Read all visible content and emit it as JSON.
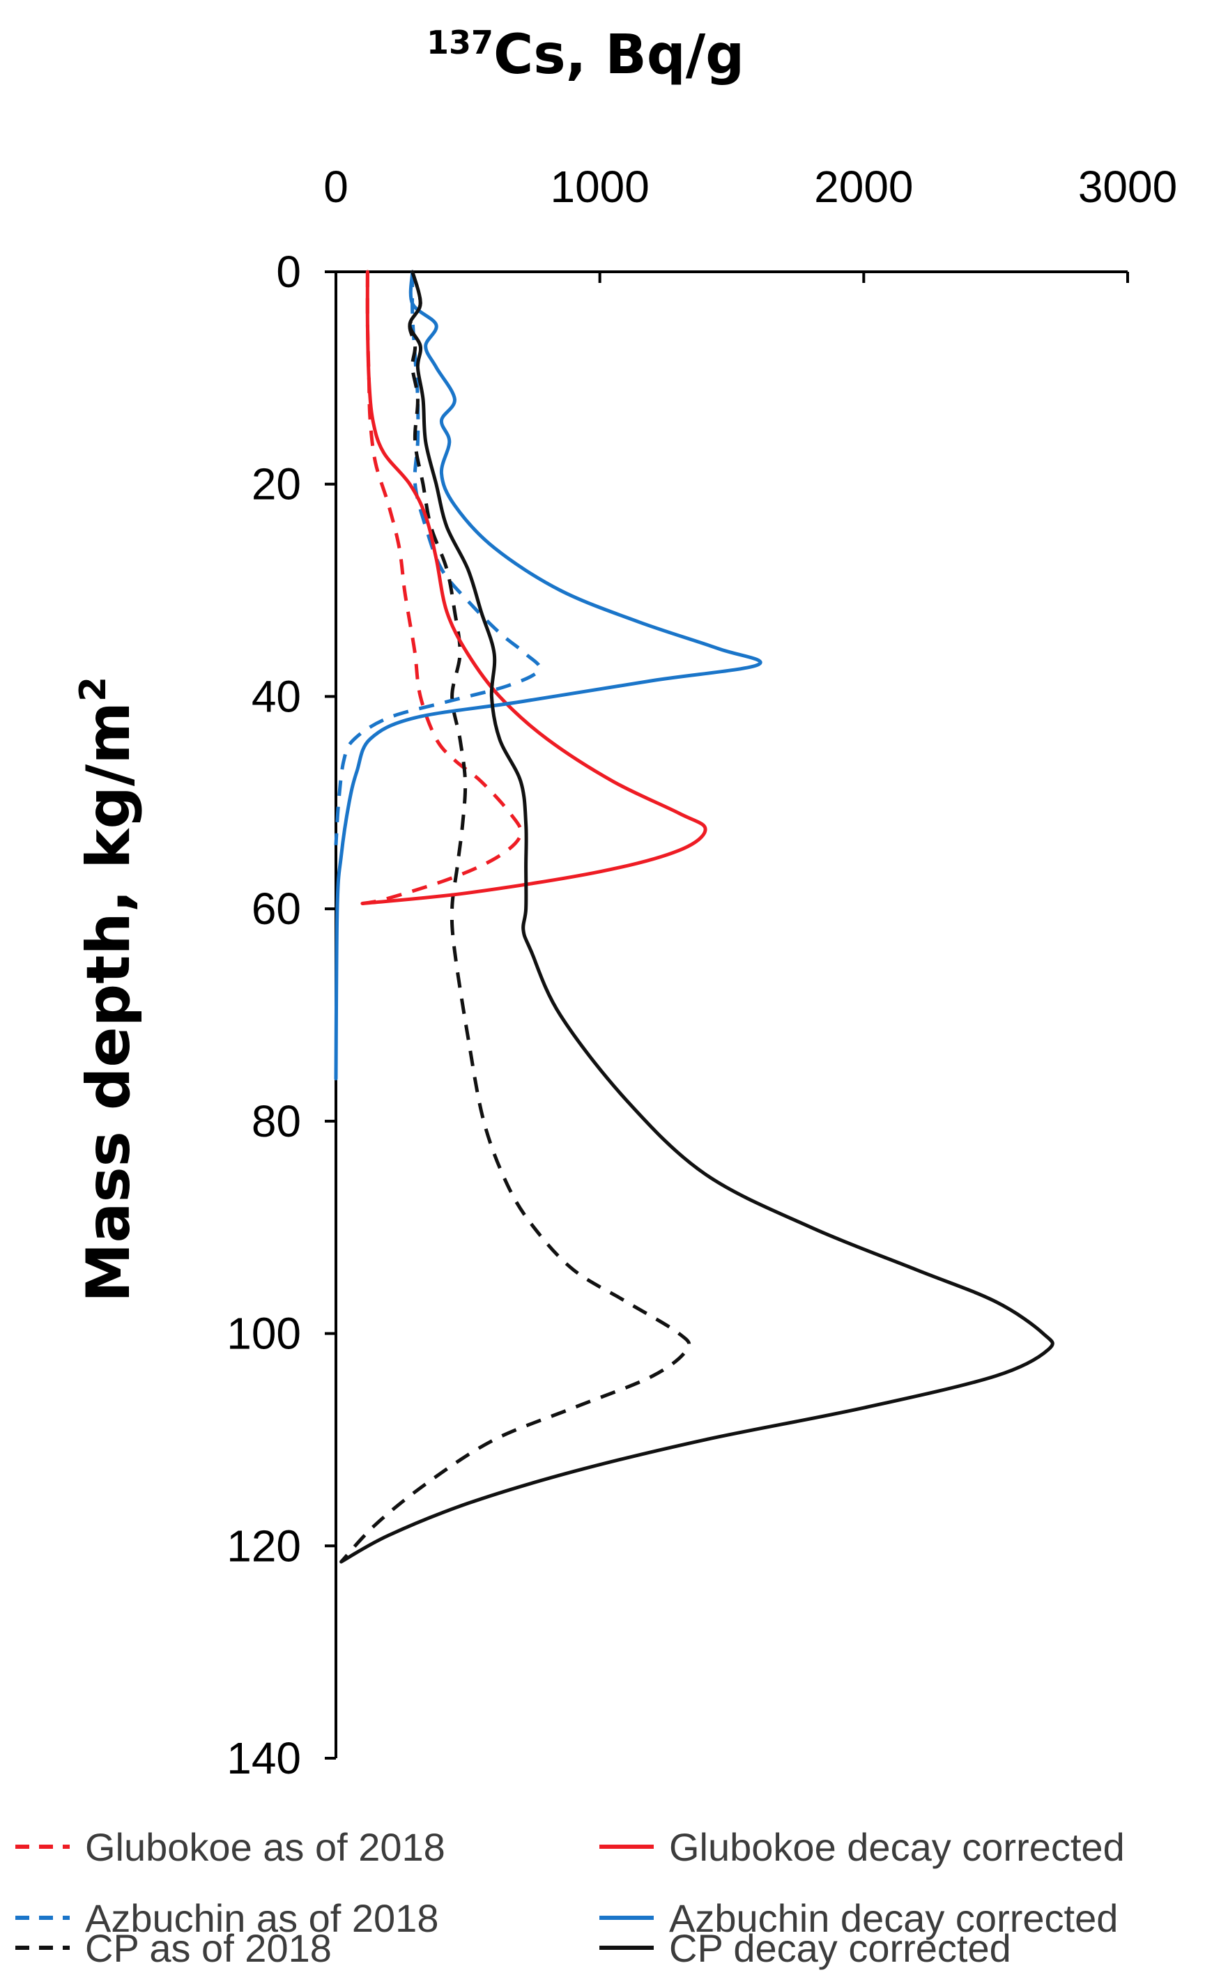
{
  "chart_data": {
    "type": "line",
    "title": "",
    "x_axis": {
      "label_main": "Cs, Bq/g",
      "label_superscript": "137",
      "ticks": [
        "0",
        "1000",
        "2000",
        "3000"
      ],
      "tick_values": [
        0,
        1000,
        2000,
        3000
      ],
      "range": [
        0,
        3000
      ],
      "position": "top"
    },
    "y_axis": {
      "label_main": "Mass depth, kg/m",
      "label_superscript": "2",
      "ticks": [
        "0",
        "20",
        "40",
        "60",
        "80",
        "100",
        "120",
        "140"
      ],
      "tick_values": [
        0,
        20,
        40,
        60,
        80,
        100,
        120,
        140
      ],
      "range": [
        0,
        140
      ],
      "inverted": true
    },
    "grid": false,
    "legend_position": "bottom",
    "series": [
      {
        "name": "Glubokoe as of 2018",
        "color": "#ee1c24",
        "style": "dashed",
        "points": [
          [
            120,
            0
          ],
          [
            120,
            5
          ],
          [
            125,
            10
          ],
          [
            130,
            14
          ],
          [
            150,
            18
          ],
          [
            200,
            22
          ],
          [
            240,
            26
          ],
          [
            260,
            30
          ],
          [
            280,
            33
          ],
          [
            300,
            36
          ],
          [
            320,
            40
          ],
          [
            380,
            44
          ],
          [
            450,
            46
          ],
          [
            550,
            48
          ],
          [
            660,
            51
          ],
          [
            700,
            53
          ],
          [
            620,
            55
          ],
          [
            450,
            57
          ],
          [
            200,
            59
          ],
          [
            100,
            59.5
          ]
        ]
      },
      {
        "name": "Glubokoe decay corrected",
        "color": "#ee1c24",
        "style": "solid",
        "points": [
          [
            120,
            0
          ],
          [
            120,
            5
          ],
          [
            125,
            10
          ],
          [
            140,
            14
          ],
          [
            180,
            17
          ],
          [
            280,
            20
          ],
          [
            340,
            23
          ],
          [
            380,
            27
          ],
          [
            420,
            32
          ],
          [
            500,
            36
          ],
          [
            620,
            40
          ],
          [
            800,
            44
          ],
          [
            1050,
            48
          ],
          [
            1300,
            51
          ],
          [
            1400,
            52.5
          ],
          [
            1300,
            54.5
          ],
          [
            1000,
            56.5
          ],
          [
            500,
            58.5
          ],
          [
            100,
            59.5
          ]
        ]
      },
      {
        "name": "Azbuchin as of 2018",
        "color": "#1a75c9",
        "style": "dashed",
        "points": [
          [
            290,
            0
          ],
          [
            290,
            4
          ],
          [
            300,
            8
          ],
          [
            310,
            12
          ],
          [
            310,
            16
          ],
          [
            300,
            20
          ],
          [
            340,
            24
          ],
          [
            400,
            28
          ],
          [
            500,
            31
          ],
          [
            620,
            34
          ],
          [
            720,
            36
          ],
          [
            770,
            37.5
          ],
          [
            650,
            39
          ],
          [
            420,
            40.5
          ],
          [
            200,
            42
          ],
          [
            70,
            44
          ],
          [
            30,
            46
          ],
          [
            10,
            50
          ],
          [
            0,
            54
          ]
        ]
      },
      {
        "name": "Azbuchin decay corrected",
        "color": "#1a75c9",
        "style": "solid",
        "points": [
          [
            290,
            0
          ],
          [
            290,
            3
          ],
          [
            380,
            5
          ],
          [
            340,
            7
          ],
          [
            380,
            9
          ],
          [
            450,
            12
          ],
          [
            400,
            14
          ],
          [
            430,
            16
          ],
          [
            400,
            19
          ],
          [
            450,
            22
          ],
          [
            600,
            26
          ],
          [
            850,
            30
          ],
          [
            1150,
            33
          ],
          [
            1450,
            35.5
          ],
          [
            1600,
            37
          ],
          [
            1200,
            38.5
          ],
          [
            700,
            40.5
          ],
          [
            300,
            42
          ],
          [
            130,
            44
          ],
          [
            80,
            47
          ],
          [
            50,
            50
          ],
          [
            20,
            55
          ],
          [
            5,
            60
          ],
          [
            0,
            76
          ]
        ]
      },
      {
        "name": "CP as of 2018",
        "color": "#111111",
        "style": "dashed",
        "points": [
          [
            290,
            0
          ],
          [
            320,
            3
          ],
          [
            280,
            5
          ],
          [
            300,
            7
          ],
          [
            290,
            9
          ],
          [
            310,
            12
          ],
          [
            300,
            16
          ],
          [
            330,
            20
          ],
          [
            360,
            24
          ],
          [
            420,
            28
          ],
          [
            450,
            32
          ],
          [
            470,
            36
          ],
          [
            440,
            40
          ],
          [
            470,
            44
          ],
          [
            490,
            48
          ],
          [
            480,
            52
          ],
          [
            460,
            56
          ],
          [
            440,
            60
          ],
          [
            450,
            64
          ],
          [
            500,
            72
          ],
          [
            560,
            80
          ],
          [
            650,
            86
          ],
          [
            750,
            90
          ],
          [
            900,
            94
          ],
          [
            1100,
            97
          ],
          [
            1300,
            100
          ],
          [
            1330,
            101.5
          ],
          [
            1200,
            104
          ],
          [
            900,
            107
          ],
          [
            600,
            110
          ],
          [
            350,
            114
          ],
          [
            150,
            118
          ],
          [
            20,
            121.5
          ]
        ]
      },
      {
        "name": "CP decay corrected",
        "color": "#111111",
        "style": "solid",
        "points": [
          [
            290,
            0
          ],
          [
            320,
            3
          ],
          [
            280,
            5
          ],
          [
            320,
            7
          ],
          [
            310,
            9
          ],
          [
            330,
            12
          ],
          [
            340,
            16
          ],
          [
            380,
            20
          ],
          [
            420,
            24
          ],
          [
            500,
            28
          ],
          [
            550,
            32
          ],
          [
            600,
            36
          ],
          [
            590,
            40
          ],
          [
            620,
            44
          ],
          [
            700,
            48
          ],
          [
            720,
            52
          ],
          [
            720,
            56
          ],
          [
            720,
            60
          ],
          [
            710,
            62
          ],
          [
            740,
            64
          ],
          [
            850,
            70
          ],
          [
            1100,
            78
          ],
          [
            1400,
            85
          ],
          [
            1800,
            90
          ],
          [
            2200,
            94
          ],
          [
            2500,
            97
          ],
          [
            2680,
            100
          ],
          [
            2700,
            101.5
          ],
          [
            2500,
            104
          ],
          [
            2000,
            107
          ],
          [
            1400,
            110
          ],
          [
            900,
            113
          ],
          [
            500,
            116
          ],
          [
            200,
            119
          ],
          [
            20,
            121.5
          ]
        ]
      }
    ]
  },
  "legend": [
    {
      "label": "Glubokoe as of 2018",
      "color": "#ee1c24",
      "style": "dashed"
    },
    {
      "label": "Glubokoe decay corrected",
      "color": "#ee1c24",
      "style": "solid"
    },
    {
      "label": "Azbuchin as of 2018",
      "color": "#1a75c9",
      "style": "dashed"
    },
    {
      "label": "Azbuchin decay corrected",
      "color": "#1a75c9",
      "style": "solid"
    },
    {
      "label": "CP as of 2018",
      "color": "#111111",
      "style": "dashed"
    },
    {
      "label": "CP decay corrected",
      "color": "#111111",
      "style": "solid"
    }
  ]
}
